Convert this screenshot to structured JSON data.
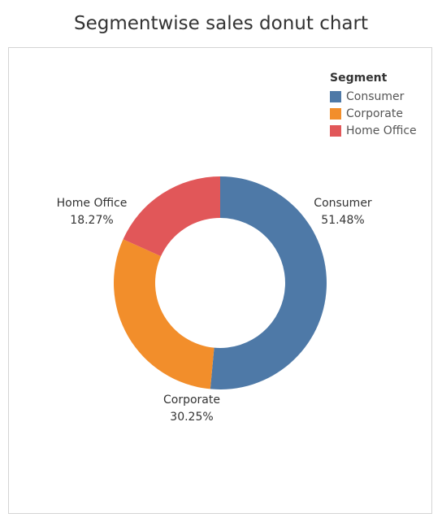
{
  "title": "Segmentwise sales donut chart",
  "legend": {
    "title": "Segment",
    "items": [
      {
        "name": "Consumer",
        "color": "#4e79a7"
      },
      {
        "name": "Corporate",
        "color": "#f28e2b"
      },
      {
        "name": "Home Office",
        "color": "#e15759"
      }
    ]
  },
  "chart_data": {
    "type": "pie",
    "variant": "donut",
    "title": "Segmentwise sales donut chart",
    "legend_title": "Segment",
    "legend_position": "top-right",
    "categories": [
      "Consumer",
      "Corporate",
      "Home Office"
    ],
    "values": [
      51.48,
      30.25,
      18.27
    ],
    "labels": [
      "51.48%",
      "30.25%",
      "18.27%"
    ],
    "colors": [
      "#4e79a7",
      "#f28e2b",
      "#e15759"
    ]
  }
}
